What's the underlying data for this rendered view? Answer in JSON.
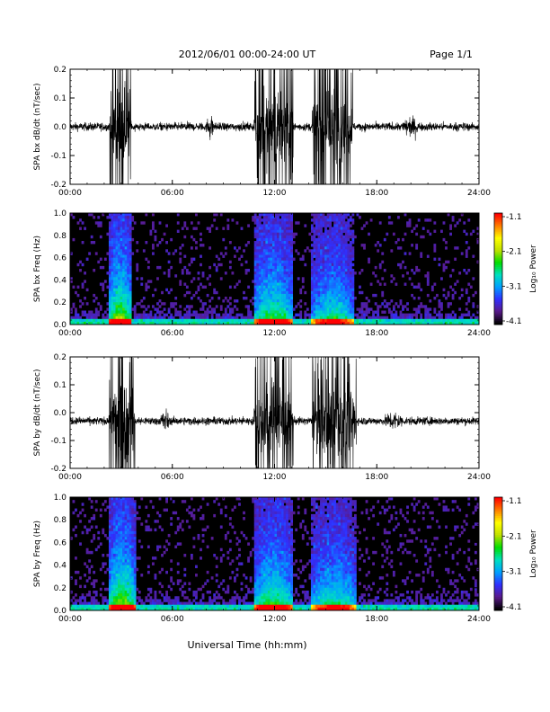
{
  "header": {
    "title": "2012/06/01   00:00-24:00 UT",
    "page": "Page 1/1"
  },
  "xaxis_label": "Universal Time (hh:mm)",
  "colorbar": {
    "label": "Log₁₀ Power",
    "ticks": [
      "-1.1",
      "-2.1",
      "-3.1",
      "-4.1"
    ],
    "range": [
      -4.1,
      -1.1
    ],
    "colors": [
      "#000000",
      "#5a1a8a",
      "#3030ff",
      "#00a0ff",
      "#00e0c0",
      "#00dd00",
      "#c0e000",
      "#ffff00",
      "#ff8000",
      "#ff0000"
    ]
  },
  "chart_data": [
    {
      "type": "line",
      "name": "bx-dbdt",
      "ylabel": "SPA bx dB/dt (nT/sec)",
      "xlim": [
        0,
        24
      ],
      "ylim": [
        -0.2,
        0.2
      ],
      "xticks": [
        "00:00",
        "06:00",
        "12:00",
        "18:00",
        "24:00"
      ],
      "yticks": [
        "0.2",
        "0.1",
        "0.0",
        "-0.1",
        "-0.2"
      ],
      "activity_hours": [
        {
          "start": 2.3,
          "end": 3.6,
          "amplitude": 0.2
        },
        {
          "start": 10.8,
          "end": 13.1,
          "amplitude": 0.2
        },
        {
          "start": 14.2,
          "end": 16.6,
          "amplitude": 0.18
        },
        {
          "start": 8.0,
          "end": 8.4,
          "amplitude": 0.06
        },
        {
          "start": 19.5,
          "end": 20.5,
          "amplitude": 0.05
        }
      ],
      "baseline": 0.0,
      "quiet_amplitude": 0.02
    },
    {
      "type": "heatmap",
      "name": "bx-spectrogram",
      "ylabel": "SPA bx Freq (Hz)",
      "xlim": [
        0,
        24
      ],
      "ylim": [
        0,
        1.0
      ],
      "xticks": [
        "00:00",
        "06:00",
        "12:00",
        "18:00",
        "24:00"
      ],
      "yticks": [
        "1.0",
        "0.8",
        "0.6",
        "0.4",
        "0.2",
        "0.0"
      ],
      "activity_hours": [
        {
          "start": 2.3,
          "end": 3.6,
          "level": 0.85
        },
        {
          "start": 10.8,
          "end": 13.1,
          "level": 0.7
        },
        {
          "start": 14.2,
          "end": 16.6,
          "level": 0.6
        }
      ]
    },
    {
      "type": "line",
      "name": "by-dbdt",
      "ylabel": "SPA by dB/dt (nT/sec)",
      "xlim": [
        0,
        24
      ],
      "ylim": [
        -0.2,
        0.2
      ],
      "xticks": [
        "00:00",
        "06:00",
        "12:00",
        "18:00",
        "24:00"
      ],
      "yticks": [
        "0.2",
        "0.1",
        "0.0",
        "-0.1",
        "-0.2"
      ],
      "activity_hours": [
        {
          "start": 2.3,
          "end": 3.8,
          "amplitude": 0.2
        },
        {
          "start": 10.8,
          "end": 13.1,
          "amplitude": 0.2
        },
        {
          "start": 14.2,
          "end": 16.8,
          "amplitude": 0.2
        },
        {
          "start": 5.3,
          "end": 5.8,
          "amplitude": 0.06
        },
        {
          "start": 18.5,
          "end": 19.5,
          "amplitude": 0.05
        }
      ],
      "baseline": -0.03,
      "quiet_amplitude": 0.02
    },
    {
      "type": "heatmap",
      "name": "by-spectrogram",
      "ylabel": "SPA by Freq (Hz)",
      "xlim": [
        0,
        24
      ],
      "ylim": [
        0,
        1.0
      ],
      "xticks": [
        "00:00",
        "06:00",
        "12:00",
        "18:00",
        "24:00"
      ],
      "yticks": [
        "1.0",
        "0.8",
        "0.6",
        "0.4",
        "0.2",
        "0.0"
      ],
      "activity_hours": [
        {
          "start": 2.3,
          "end": 3.8,
          "level": 0.85
        },
        {
          "start": 10.8,
          "end": 13.1,
          "level": 0.7
        },
        {
          "start": 14.2,
          "end": 16.8,
          "level": 0.6
        }
      ]
    }
  ]
}
